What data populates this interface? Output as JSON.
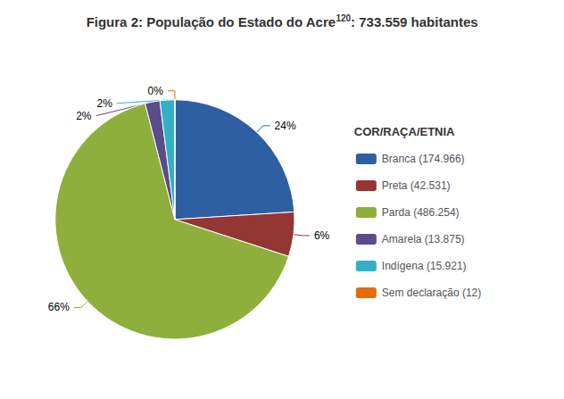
{
  "chart_data": {
    "type": "pie",
    "title": "Figura 2: População do Estado do Acre",
    "title_superscript": "120",
    "title_suffix": ": 733.559 habitantes",
    "legend_title": "COR/RAÇA/ETNIA",
    "categories": [
      "Branca (174.966)",
      "Preta (42.531)",
      "Parda (486.254)",
      "Amarela (13.875)",
      "Indígena (15.921)",
      "Sem declaração (12)"
    ],
    "values": [
      24,
      6,
      66,
      2,
      2,
      0
    ],
    "value_labels": [
      "24%",
      "6%",
      "66%",
      "2%",
      "2%",
      "0%"
    ],
    "colors": [
      "#2e5fa3",
      "#943634",
      "#8faf3c",
      "#5c4b8a",
      "#31b0c6",
      "#e36c09"
    ],
    "data_labels": true,
    "legend": "right"
  }
}
